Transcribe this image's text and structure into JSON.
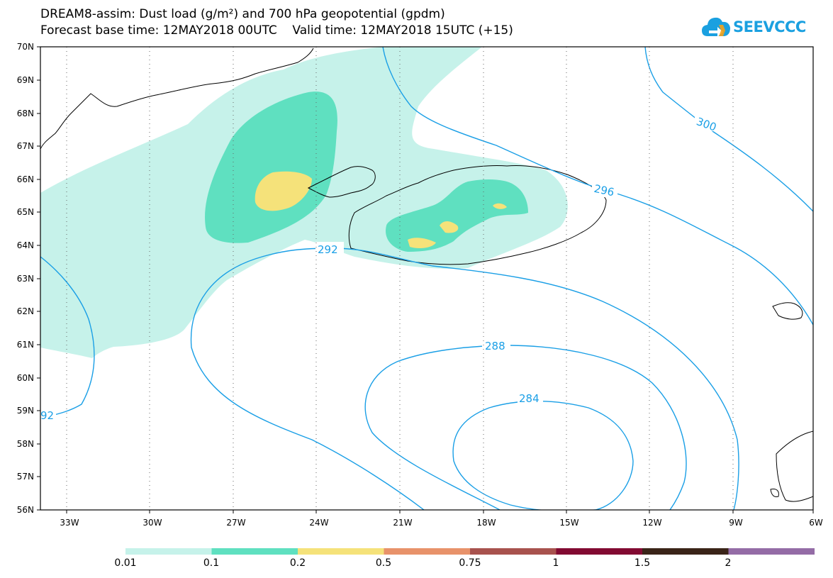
{
  "title": {
    "line1": "DREAM8-assim: Dust load (g/m²) and 700 hPa geopotential (gpdm)",
    "line2": "Forecast base time: 12MAY2018 00UTC    Valid time: 12MAY2018 15UTC (+15)"
  },
  "logo": {
    "text": "SEEVCCC",
    "icon": "cloud-icon"
  },
  "axes": {
    "lat_labels": [
      "70N",
      "69N",
      "68N",
      "67N",
      "66N",
      "65N",
      "64N",
      "63N",
      "62N",
      "61N",
      "60N",
      "59N",
      "58N",
      "57N",
      "56N"
    ],
    "lon_labels": [
      "33W",
      "30W",
      "27W",
      "24W",
      "21W",
      "18W",
      "15W",
      "12W",
      "9W",
      "6W"
    ]
  },
  "contours": {
    "unit": "gpdm",
    "labels": [
      "300",
      "296",
      "292",
      "288",
      "284",
      "92"
    ]
  },
  "colorbar": {
    "ticks": [
      "0.01",
      "0.1",
      "0.2",
      "0.5",
      "0.75",
      "1",
      "1.5",
      "2"
    ],
    "colors": [
      "#c6f2ea",
      "#5fe0c0",
      "#f5e27a",
      "#e8926a",
      "#a8524e",
      "#820a32",
      "#3a2418",
      "#946ca6"
    ]
  },
  "colors": {
    "contour": "#1a9fe6",
    "coast": "#000000",
    "dust_low": "#c6f2ea",
    "dust_mid": "#5fe0c0",
    "dust_high": "#f5e27a"
  }
}
